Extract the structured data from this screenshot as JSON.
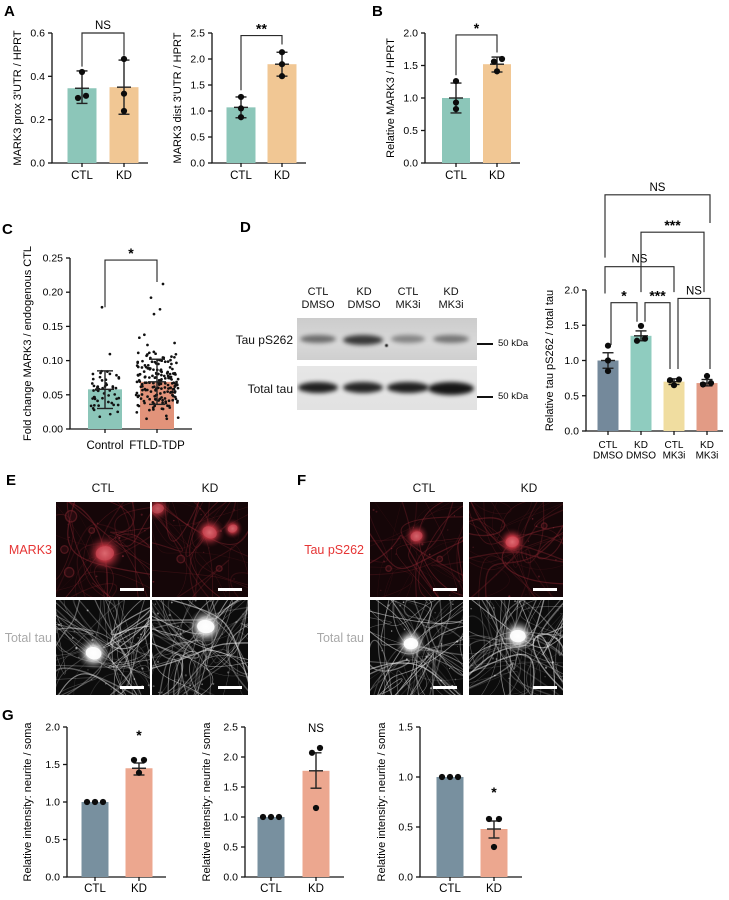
{
  "panels": {
    "A": "A",
    "B": "B",
    "C": "C",
    "D": "D",
    "E": "E",
    "F": "F",
    "G": "G"
  },
  "chart_data": [
    {
      "id": "a1",
      "type": "bar",
      "ylabel": "MARK3 prox 3'UTR / HPRT",
      "ylim": [
        0,
        0.6
      ],
      "yticks": [
        0,
        0.2,
        0.4,
        0.6
      ],
      "decimals": 1,
      "series": [
        {
          "category": "CTL",
          "value": 0.345,
          "color": "#8cc6b9",
          "points": [
            0.3,
            0.31,
            0.42
          ],
          "point_dx": [
            -4,
            4,
            0
          ],
          "err": [
            0.275,
            0.425
          ]
        },
        {
          "category": "KD",
          "value": 0.35,
          "color": "#f1c794",
          "points": [
            0.24,
            0.32,
            0.48
          ],
          "point_dx": [
            0,
            0,
            0
          ],
          "err": [
            0.225,
            0.475
          ]
        }
      ],
      "sig_brackets": [
        {
          "from": 0,
          "to": 1,
          "label": "NS",
          "y": 0.6,
          "legs": [
            0.445,
            0.495
          ]
        }
      ]
    },
    {
      "id": "a2",
      "type": "bar",
      "ylabel": "MARK3 dist 3'UTR / HPRT",
      "ylim": [
        0,
        2.5
      ],
      "yticks": [
        0,
        0.5,
        1.0,
        1.5,
        2.0,
        2.5
      ],
      "decimals": 1,
      "series": [
        {
          "category": "CTL",
          "value": 1.07,
          "color": "#8cc6b9",
          "points": [
            0.88,
            1.05,
            1.27
          ],
          "point_dx": [
            0,
            0,
            0
          ],
          "err": [
            0.87,
            1.27
          ]
        },
        {
          "category": "KD",
          "value": 1.9,
          "color": "#f1c794",
          "points": [
            1.67,
            1.9,
            2.13
          ],
          "point_dx": [
            0,
            0,
            0
          ],
          "err": [
            1.67,
            2.13
          ]
        }
      ],
      "sig_brackets": [
        {
          "from": 0,
          "to": 1,
          "label": "**",
          "y": 2.45,
          "legs": [
            1.4,
            2.28
          ]
        }
      ]
    },
    {
      "id": "b",
      "type": "bar",
      "ylabel": "Relative MARK3 / HPRT",
      "ylim": [
        0,
        2.0
      ],
      "yticks": [
        0,
        0.5,
        1.0,
        1.5,
        2.0
      ],
      "decimals": 1,
      "series": [
        {
          "category": "CTL",
          "value": 1.0,
          "color": "#8cc6b9",
          "points": [
            0.83,
            0.93,
            1.26
          ],
          "point_dx": [
            0,
            0,
            0
          ],
          "err": [
            0.77,
            1.23
          ]
        },
        {
          "category": "KD",
          "value": 1.52,
          "color": "#f1c794",
          "points": [
            1.41,
            1.56,
            1.6
          ],
          "point_dx": [
            0,
            -3,
            5
          ],
          "err": [
            1.4,
            1.63
          ]
        }
      ],
      "sig_brackets": [
        {
          "from": 0,
          "to": 1,
          "label": "*",
          "y": 1.97,
          "legs": [
            1.35,
            1.7
          ]
        }
      ]
    },
    {
      "id": "c",
      "type": "bar",
      "ylabel": "Fold change MARK3 / endogenous CTL",
      "ylim": [
        0,
        0.25
      ],
      "yticks": [
        0,
        0.05,
        0.1,
        0.15,
        0.2,
        0.25
      ],
      "decimals": 2,
      "capw": 8,
      "series": [
        {
          "category": "Control",
          "value": 0.058,
          "color": "#8cc6b9",
          "err": [
            0.03,
            0.085
          ],
          "scatter": {
            "count": 52,
            "mean": 0.058,
            "sd": 0.021,
            "min": 0.018,
            "max": 0.125,
            "outliers": [
              0.178
            ]
          }
        },
        {
          "category": "FTLD-TDP",
          "value": 0.069,
          "color": "#e2937a",
          "err": [
            0.036,
            0.102
          ],
          "scatter": {
            "count": 185,
            "mean": 0.069,
            "sd": 0.025,
            "min": 0.015,
            "max": 0.148,
            "outliers": [
              0.168,
              0.175,
              0.192,
              0.212
            ]
          }
        }
      ],
      "sig_brackets": [
        {
          "from": 0,
          "to": 1,
          "label": "*",
          "y": 0.247,
          "legs": [
            0.178,
            0.215
          ]
        }
      ]
    },
    {
      "id": "d",
      "type": "bar",
      "ylabel": "Relative tau pS262 / total tau",
      "ylim": [
        0,
        2.0
      ],
      "yticks": [
        0,
        0.5,
        1.0,
        1.5,
        2.0
      ],
      "decimals": 1,
      "series": [
        {
          "category": "CTL\nDMSO",
          "value": 1.0,
          "color": "#74899b",
          "points": [
            0.85,
            1.0,
            1.21
          ],
          "point_dx": [
            0,
            0,
            0
          ],
          "err": [
            0.89,
            1.11
          ]
        },
        {
          "category": "KD\nDMSO",
          "value": 1.35,
          "color": "#8fccbf",
          "points": [
            1.28,
            1.31,
            1.49
          ],
          "point_dx": [
            -4,
            4,
            0
          ],
          "err": [
            1.28,
            1.42
          ]
        },
        {
          "category": "CTL\nMK3i",
          "value": 0.7,
          "color": "#f0dda0",
          "points": [
            0.65,
            0.72,
            0.73
          ],
          "point_dx": [
            0,
            -4,
            5
          ],
          "err": [
            0.66,
            0.74
          ]
        },
        {
          "category": "KD\nMK3i",
          "value": 0.68,
          "color": "#e29b85",
          "points": [
            0.66,
            0.68,
            0.78
          ],
          "point_dx": [
            -4,
            4,
            0
          ],
          "err": [
            0.64,
            0.73
          ]
        }
      ],
      "sig_brackets": [
        {
          "from": 0,
          "to": 1,
          "label": "*",
          "y": 1.82,
          "legs": [
            1.22,
            1.55
          ],
          "dx": [
            3,
            -4
          ]
        },
        {
          "from": 1,
          "to": 2,
          "label": "***",
          "y": 1.82,
          "legs": [
            1.55,
            0.88
          ],
          "dx": [
            4,
            -4
          ]
        },
        {
          "from": 2,
          "to": 3,
          "label": "NS",
          "y": 1.88,
          "legs": [
            0.88,
            0.88
          ],
          "dx": [
            4,
            3
          ]
        },
        {
          "from": 0,
          "to": 2,
          "label": "NS",
          "y": 2.33,
          "legs": [
            1.95,
            1.97
          ],
          "dx": [
            -3,
            0
          ]
        },
        {
          "from": 1,
          "to": 3,
          "label": "***",
          "y": 2.82,
          "legs": [
            1.97,
            1.97
          ],
          "dx": [
            0,
            -3
          ]
        },
        {
          "from": 0,
          "to": 3,
          "label": "NS",
          "y": 3.35,
          "legs": [
            2.46,
            2.95
          ],
          "dx": [
            -3,
            3
          ]
        }
      ]
    },
    {
      "id": "g1",
      "type": "bar",
      "ylabel": "Relative intensity: neurite / soma",
      "ylim": [
        0,
        2.0
      ],
      "yticks": [
        0,
        0.5,
        1.0,
        1.5,
        2.0
      ],
      "decimals": 1,
      "series": [
        {
          "category": "CTL",
          "value": 1.0,
          "color": "#78909f",
          "points": [
            1.0,
            1.0,
            1.0
          ],
          "point_dx": [
            -8,
            0,
            8
          ]
        },
        {
          "category": "KD",
          "value": 1.45,
          "color": "#eca78f",
          "points": [
            1.39,
            1.56,
            1.56
          ],
          "point_dx": [
            0,
            -5,
            5
          ],
          "err": [
            1.36,
            1.52
          ]
        }
      ],
      "sig_texts": [
        {
          "bar": 1,
          "label": "*",
          "y": 1.83
        }
      ]
    },
    {
      "id": "g2",
      "type": "bar",
      "ylabel": "Relative intensity: neurite / soma",
      "ylim": [
        0,
        2.5
      ],
      "yticks": [
        0,
        0.5,
        1.0,
        1.5,
        2.0,
        2.5
      ],
      "decimals": 1,
      "series": [
        {
          "category": "CTL",
          "value": 1.0,
          "color": "#78909f",
          "points": [
            1.0,
            1.0,
            1.0
          ],
          "point_dx": [
            -8,
            0,
            8
          ]
        },
        {
          "category": "KD",
          "value": 1.77,
          "color": "#eca78f",
          "points": [
            1.15,
            2.07,
            2.15
          ],
          "point_dx": [
            0,
            -4,
            4
          ],
          "err": [
            1.48,
            2.07
          ]
        }
      ],
      "sig_texts": [
        {
          "bar": 1,
          "label": "NS",
          "y": 2.42
        }
      ]
    },
    {
      "id": "g3",
      "type": "bar",
      "ylabel": "Relative intensity: neurite / soma",
      "ylim": [
        0,
        1.5
      ],
      "yticks": [
        0,
        0.5,
        1.0,
        1.5
      ],
      "decimals": 1,
      "series": [
        {
          "category": "CTL",
          "value": 1.0,
          "color": "#78909f",
          "points": [
            1.0,
            1.0,
            1.0
          ],
          "point_dx": [
            -8,
            0,
            8
          ]
        },
        {
          "category": "KD",
          "value": 0.48,
          "color": "#eca78f",
          "points": [
            0.3,
            0.58,
            0.58
          ],
          "point_dx": [
            0,
            -5,
            5
          ],
          "err": [
            0.39,
            0.56
          ]
        }
      ],
      "sig_texts": [
        {
          "bar": 1,
          "label": "*",
          "y": 0.8
        }
      ]
    }
  ],
  "blot": {
    "lane_labels": [
      "CTL\nDMSO",
      "KD\nDMSO",
      "CTL\nMK3i",
      "KD\nMK3i"
    ],
    "row_labels": [
      "Tau pS262",
      "Total tau"
    ],
    "marker_label": "50 kDa",
    "ps262_band_intensity": [
      0.55,
      0.82,
      0.42,
      0.5
    ],
    "total_tau_band_intensity": [
      0.95,
      0.92,
      0.95,
      1.0
    ]
  },
  "microscopy": {
    "e": {
      "columns": [
        "CTL",
        "KD"
      ],
      "rows": [
        {
          "label": "MARK3",
          "color": "#e63535"
        },
        {
          "label": "Total tau",
          "color": "#a9a9a9"
        }
      ]
    },
    "f": {
      "columns": [
        "CTL",
        "KD"
      ],
      "rows": [
        {
          "label": "Tau pS262",
          "color": "#e63535"
        },
        {
          "label": "Total tau",
          "color": "#a9a9a9"
        }
      ]
    }
  }
}
